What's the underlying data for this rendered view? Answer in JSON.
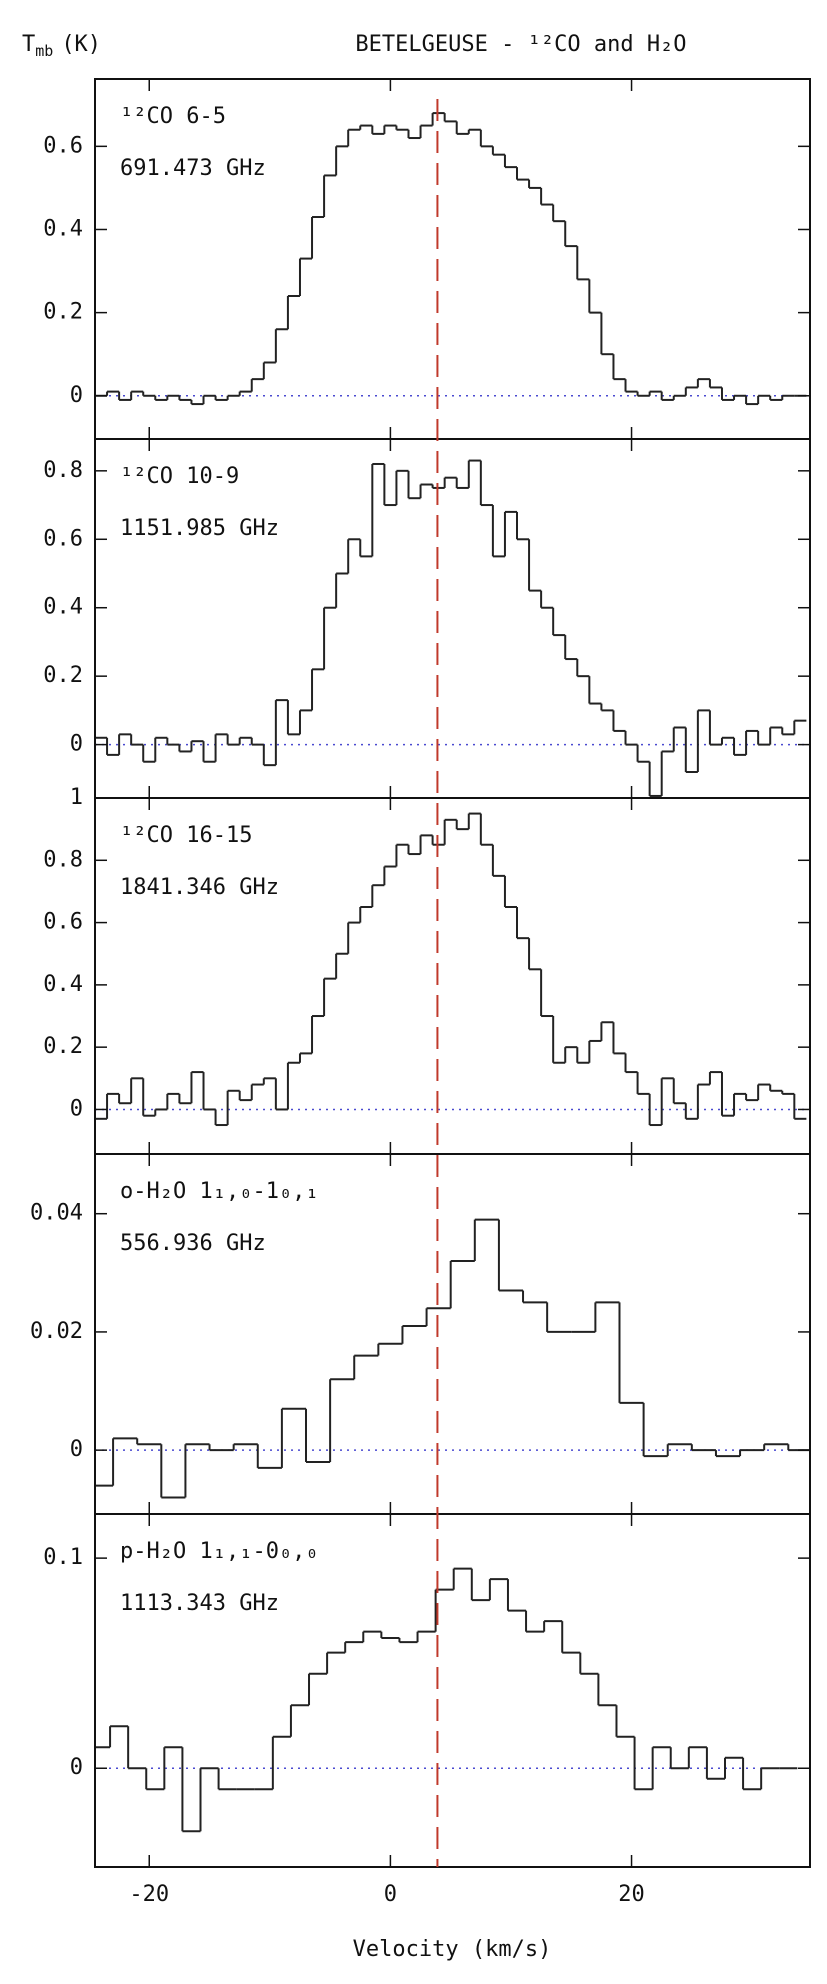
{
  "figure": {
    "title": "BETELGEUSE - ¹²CO and H₂O",
    "title_color": "#2323c8",
    "ylabel": {
      "symbol": "T",
      "subscript": "mb",
      "unit": "(K)"
    },
    "xlabel": "Velocity (km/s)",
    "reference_velocity": 3.9,
    "reference_color": "#c0392b"
  },
  "chart_data": [
    {
      "type": "line",
      "step": "mid",
      "color": "#222222",
      "label": "¹²CO 6-5",
      "frequency": "691.473 GHz",
      "label_color": "#2323c8",
      "xlim": [
        -24.5,
        34.8
      ],
      "xticks": [
        -20,
        0,
        20
      ],
      "ylim": [
        -0.104,
        0.762
      ],
      "yticks": [
        0,
        0.2,
        0.4,
        0.6
      ],
      "x": [
        -24,
        -23,
        -22,
        -21,
        -20,
        -19,
        -18,
        -17,
        -16,
        -15,
        -14,
        -13,
        -12,
        -11,
        -10,
        -9,
        -8,
        -7,
        -6,
        -5,
        -4,
        -3,
        -2,
        -1,
        0,
        1,
        2,
        3,
        4,
        5,
        6,
        7,
        8,
        9,
        10,
        11,
        12,
        13,
        14,
        15,
        16,
        17,
        18,
        19,
        20,
        21,
        22,
        23,
        24,
        25,
        26,
        27,
        28,
        29,
        30,
        31,
        32,
        33,
        34
      ],
      "values": [
        0.0,
        0.01,
        -0.01,
        0.01,
        0.0,
        -0.01,
        0.0,
        -0.01,
        -0.02,
        0.0,
        -0.01,
        0.0,
        0.01,
        0.04,
        0.08,
        0.16,
        0.24,
        0.33,
        0.43,
        0.53,
        0.6,
        0.64,
        0.65,
        0.63,
        0.65,
        0.64,
        0.62,
        0.65,
        0.68,
        0.66,
        0.63,
        0.64,
        0.6,
        0.58,
        0.55,
        0.52,
        0.5,
        0.46,
        0.42,
        0.36,
        0.28,
        0.2,
        0.1,
        0.04,
        0.01,
        0.0,
        0.01,
        -0.01,
        0.0,
        0.02,
        0.04,
        0.02,
        -0.01,
        0.0,
        -0.02,
        0.0,
        -0.01,
        0.0,
        0.0
      ]
    },
    {
      "type": "line",
      "step": "mid",
      "color": "#222222",
      "label": "¹²CO 10-9",
      "frequency": "1151.985 GHz",
      "label_color": "#2323c8",
      "xlim": [
        -24.5,
        34.8
      ],
      "xticks": [
        -20,
        0,
        20
      ],
      "ylim": [
        -0.156,
        0.893
      ],
      "yticks": [
        0,
        0.2,
        0.4,
        0.6,
        0.8
      ],
      "x": [
        -24,
        -23,
        -22,
        -21,
        -20,
        -19,
        -18,
        -17,
        -16,
        -15,
        -14,
        -13,
        -12,
        -11,
        -10,
        -9,
        -8,
        -7,
        -6,
        -5,
        -4,
        -3,
        -2,
        -1,
        0,
        1,
        2,
        3,
        4,
        5,
        6,
        7,
        8,
        9,
        10,
        11,
        12,
        13,
        14,
        15,
        16,
        17,
        18,
        19,
        20,
        21,
        22,
        23,
        24,
        25,
        26,
        27,
        28,
        29,
        30,
        31,
        32,
        33,
        34
      ],
      "values": [
        0.02,
        -0.03,
        0.03,
        0.0,
        -0.05,
        0.02,
        0.0,
        -0.02,
        0.01,
        -0.05,
        0.03,
        0.0,
        0.02,
        0.0,
        -0.06,
        0.13,
        0.03,
        0.1,
        0.22,
        0.4,
        0.5,
        0.6,
        0.55,
        0.82,
        0.7,
        0.8,
        0.72,
        0.76,
        0.75,
        0.78,
        0.75,
        0.83,
        0.7,
        0.55,
        0.68,
        0.6,
        0.45,
        0.4,
        0.32,
        0.25,
        0.2,
        0.12,
        0.1,
        0.04,
        0.0,
        -0.05,
        -0.15,
        -0.02,
        0.05,
        -0.08,
        0.1,
        0.0,
        0.02,
        -0.03,
        0.04,
        0.0,
        0.05,
        0.03,
        0.07
      ]
    },
    {
      "type": "line",
      "step": "mid",
      "color": "#222222",
      "label": "¹²CO 16-15",
      "frequency": "1841.346 GHz",
      "label_color": "#2323c8",
      "xlim": [
        -24.5,
        34.8
      ],
      "xticks": [
        -20,
        0,
        20
      ],
      "ylim": [
        -0.143,
        1
      ],
      "yticks": [
        0,
        0.2,
        0.4,
        0.6,
        0.8,
        1
      ],
      "x": [
        -24,
        -23,
        -22,
        -21,
        -20,
        -19,
        -18,
        -17,
        -16,
        -15,
        -14,
        -13,
        -12,
        -11,
        -10,
        -9,
        -8,
        -7,
        -6,
        -5,
        -4,
        -3,
        -2,
        -1,
        0,
        1,
        2,
        3,
        4,
        5,
        6,
        7,
        8,
        9,
        10,
        11,
        12,
        13,
        14,
        15,
        16,
        17,
        18,
        19,
        20,
        21,
        22,
        23,
        24,
        25,
        26,
        27,
        28,
        29,
        30,
        31,
        32,
        33,
        34
      ],
      "values": [
        -0.03,
        0.05,
        0.02,
        0.1,
        -0.02,
        0.0,
        0.05,
        0.02,
        0.12,
        0.0,
        -0.05,
        0.06,
        0.03,
        0.08,
        0.1,
        0.0,
        0.15,
        0.18,
        0.3,
        0.42,
        0.5,
        0.6,
        0.65,
        0.72,
        0.78,
        0.85,
        0.82,
        0.88,
        0.85,
        0.93,
        0.9,
        0.95,
        0.85,
        0.75,
        0.65,
        0.55,
        0.45,
        0.3,
        0.15,
        0.2,
        0.15,
        0.22,
        0.28,
        0.18,
        0.12,
        0.05,
        -0.05,
        0.1,
        0.02,
        -0.03,
        0.08,
        0.12,
        -0.02,
        0.05,
        0.03,
        0.08,
        0.06,
        0.05,
        -0.03
      ]
    },
    {
      "type": "line",
      "step": "mid",
      "color": "#222222",
      "label": "o-H₂O 1₁,₀-1₀,₁",
      "frequency": "556.936 GHz",
      "label_color": "#2323c8",
      "xlim": [
        -24.5,
        34.8
      ],
      "xticks": [
        -20,
        0,
        20
      ],
      "ylim": [
        -0.0108,
        0.0501
      ],
      "yticks": [
        0,
        0.02,
        0.04
      ],
      "x": [
        -24,
        -22,
        -20,
        -18,
        -16,
        -14,
        -12,
        -10,
        -8,
        -6,
        -4,
        -2,
        0,
        2,
        4,
        6,
        8,
        10,
        12,
        14,
        16,
        18,
        20,
        22,
        24,
        26,
        28,
        30,
        32,
        34
      ],
      "values": [
        -0.006,
        0.002,
        0.001,
        -0.008,
        0.001,
        0.0,
        0.001,
        -0.003,
        0.007,
        -0.002,
        0.012,
        0.016,
        0.018,
        0.021,
        0.024,
        0.032,
        0.039,
        0.027,
        0.025,
        0.02,
        0.02,
        0.025,
        0.008,
        -0.001,
        0.001,
        0.0,
        -0.001,
        0.0,
        0.001,
        0.0
      ]
    },
    {
      "type": "line",
      "step": "mid",
      "color": "#222222",
      "label": "p-H₂O 1₁,₁-0₀,₀",
      "frequency": "1113.343 GHz",
      "label_color": "#2323c8",
      "xlim": [
        -24.5,
        34.8
      ],
      "xticks": [
        -20,
        0,
        20
      ],
      "ylim": [
        -0.047,
        0.121
      ],
      "yticks": [
        0,
        0.1
      ],
      "x": [
        -24,
        -22.5,
        -21,
        -19.5,
        -18,
        -16.5,
        -15,
        -13.5,
        -12,
        -10.5,
        -9,
        -7.5,
        -6,
        -4.5,
        -3,
        -1.5,
        0,
        1.5,
        3,
        4.5,
        6,
        7.5,
        9,
        10.5,
        12,
        13.5,
        15,
        16.5,
        18,
        19.5,
        21,
        22.5,
        24,
        25.5,
        27,
        28.5,
        30,
        31.5,
        33
      ],
      "values": [
        0.01,
        0.02,
        0.0,
        -0.01,
        0.01,
        -0.03,
        0.0,
        -0.01,
        -0.01,
        -0.01,
        0.015,
        0.03,
        0.045,
        0.055,
        0.06,
        0.065,
        0.062,
        0.06,
        0.065,
        0.085,
        0.095,
        0.08,
        0.09,
        0.075,
        0.065,
        0.07,
        0.055,
        0.045,
        0.03,
        0.015,
        -0.01,
        0.01,
        0.0,
        0.01,
        -0.005,
        0.005,
        -0.01,
        0.0,
        0.0
      ]
    }
  ]
}
